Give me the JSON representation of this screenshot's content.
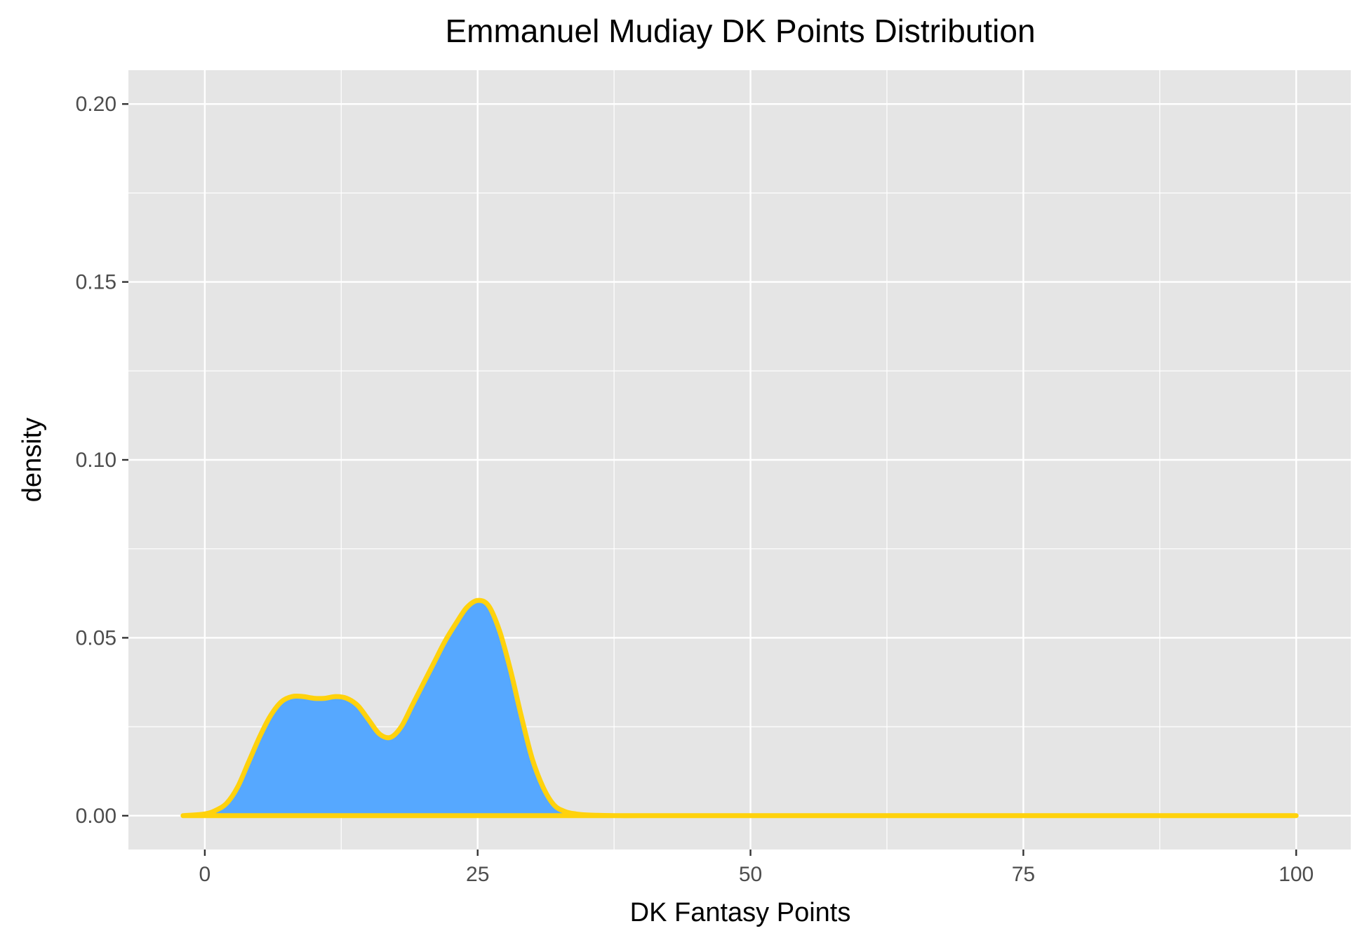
{
  "chart_data": {
    "type": "area",
    "title": "Emmanuel Mudiay DK Points Distribution",
    "xlabel": "DK Fantasy Points",
    "ylabel": "density",
    "xlim": [
      -7,
      105
    ],
    "ylim": [
      -0.0095,
      0.2095
    ],
    "x_ticks": [
      0,
      25,
      50,
      75,
      100
    ],
    "x_tick_labels": [
      "0",
      "25",
      "50",
      "75",
      "100"
    ],
    "y_ticks": [
      0,
      0.05,
      0.1,
      0.15,
      0.2
    ],
    "y_tick_labels": [
      "0.00",
      "0.05",
      "0.10",
      "0.15",
      "0.20"
    ],
    "grid": true,
    "colors": {
      "panel_background": "#E5E5E5",
      "grid_line": "#FFFFFF",
      "fill": "#56A8FF",
      "line": "#FFD20C",
      "tick_mark": "#333333"
    },
    "series": [
      {
        "x": [
          -2,
          0,
          1,
          2,
          3,
          4,
          5,
          6,
          7,
          8,
          9,
          10,
          11,
          12,
          13,
          14,
          15,
          16,
          17,
          18,
          19,
          20,
          21,
          22,
          23,
          24,
          25,
          26,
          27,
          28,
          29,
          30,
          31,
          32,
          33,
          34,
          35,
          36,
          38,
          40,
          50,
          60,
          70,
          80,
          90,
          100
        ],
        "y": [
          0,
          0.0005,
          0.0015,
          0.0035,
          0.008,
          0.015,
          0.022,
          0.028,
          0.032,
          0.0335,
          0.0335,
          0.033,
          0.033,
          0.0335,
          0.033,
          0.031,
          0.027,
          0.023,
          0.022,
          0.025,
          0.031,
          0.037,
          0.043,
          0.049,
          0.054,
          0.0585,
          0.0605,
          0.059,
          0.052,
          0.041,
          0.028,
          0.016,
          0.008,
          0.003,
          0.0012,
          0.0005,
          0.0002,
          0.0001,
          0,
          0,
          0,
          0,
          0,
          0,
          0,
          0
        ]
      }
    ]
  }
}
